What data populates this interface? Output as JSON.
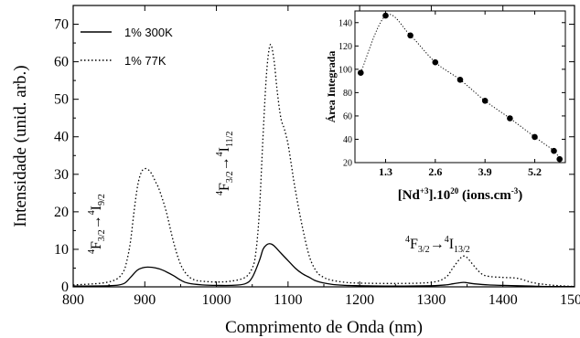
{
  "chart_data": [
    {
      "type": "line",
      "xlabel": "Comprimento de Onda (nm)",
      "ylabel": "Intensidade (unid. arb.)",
      "xlim": [
        800,
        1500
      ],
      "ylim": [
        0,
        75
      ],
      "xticks": [
        800,
        900,
        1000,
        1100,
        1200,
        1300,
        1400,
        1500
      ],
      "yticks": [
        0,
        10,
        20,
        30,
        40,
        50,
        60,
        70
      ],
      "legend": "top-left",
      "series": [
        {
          "name": "1% 300K",
          "style": "solid",
          "x": [
            800,
            850,
            870,
            880,
            890,
            900,
            910,
            920,
            930,
            940,
            950,
            960,
            980,
            1000,
            1020,
            1040,
            1050,
            1060,
            1065,
            1070,
            1075,
            1080,
            1090,
            1100,
            1110,
            1120,
            1130,
            1140,
            1160,
            1180,
            1200,
            1250,
            1300,
            1320,
            1330,
            1340,
            1345,
            1350,
            1360,
            1380,
            1400,
            1420,
            1440,
            1460,
            1500
          ],
          "y": [
            0.2,
            0.3,
            0.8,
            2.5,
            4.5,
            5.2,
            5.2,
            4.8,
            4.0,
            3.0,
            1.8,
            1.0,
            0.5,
            0.4,
            0.4,
            0.8,
            2.5,
            7.0,
            10.0,
            11.2,
            11.5,
            11.0,
            9.0,
            7.0,
            5.0,
            3.5,
            2.5,
            1.5,
            0.7,
            0.4,
            0.3,
            0.2,
            0.3,
            0.5,
            0.8,
            1.1,
            1.2,
            1.1,
            0.8,
            0.5,
            0.4,
            0.3,
            0.2,
            0.1,
            0.1
          ]
        },
        {
          "name": "1% 77K",
          "style": "dotted",
          "x": [
            800,
            840,
            860,
            870,
            875,
            880,
            885,
            890,
            895,
            900,
            905,
            910,
            915,
            920,
            930,
            940,
            950,
            960,
            970,
            980,
            1000,
            1020,
            1040,
            1050,
            1055,
            1060,
            1065,
            1070,
            1075,
            1080,
            1085,
            1090,
            1095,
            1100,
            1105,
            1110,
            1120,
            1130,
            1140,
            1150,
            1160,
            1180,
            1200,
            1250,
            1300,
            1320,
            1330,
            1340,
            1345,
            1350,
            1360,
            1370,
            1380,
            1400,
            1420,
            1440,
            1460,
            1480,
            1500
          ],
          "y": [
            0.5,
            1.0,
            2.0,
            4.0,
            7.0,
            12.0,
            20.0,
            27.0,
            30.5,
            31.5,
            31.2,
            30.0,
            28.0,
            26.0,
            20.0,
            12.0,
            6.0,
            3.0,
            1.8,
            1.5,
            1.3,
            1.5,
            2.5,
            5.0,
            9.0,
            20.0,
            40.0,
            57.0,
            64.5,
            61.0,
            52.0,
            45.0,
            42.0,
            38.0,
            32.0,
            26.0,
            16.0,
            8.0,
            4.0,
            2.5,
            1.8,
            1.2,
            1.0,
            0.9,
            1.2,
            2.5,
            5.0,
            7.5,
            8.2,
            7.8,
            5.5,
            3.5,
            2.8,
            2.5,
            2.3,
            1.2,
            0.6,
            0.3,
            0.1
          ]
        }
      ],
      "annotations": [
        {
          "base": "4",
          "main": "F",
          "sub": "3/2",
          "arrow": "→",
          "base2": "4",
          "main2": "I",
          "sub2": "9/2"
        },
        {
          "base": "4",
          "main": "F",
          "sub": "3/2",
          "arrow": "→",
          "base2": "4",
          "main2": "I",
          "sub2": "11/2"
        },
        {
          "base": "4",
          "main": "F",
          "sub": "3/2",
          "arrow": "→",
          "base2": "4",
          "main2": "I",
          "sub2": "13/2"
        }
      ]
    },
    {
      "type": "scatter",
      "xlabel_parts": [
        "[Nd",
        "+3",
        "].10",
        "20",
        " (ions.cm",
        "-3",
        ")"
      ],
      "ylabel": "Área Integrada",
      "xlim": [
        0.5,
        6.0
      ],
      "ylim": [
        20,
        150
      ],
      "xticks": [
        "1.3",
        "2.6",
        "3.9",
        "5.2"
      ],
      "xtick_values": [
        1.3,
        2.6,
        3.9,
        5.2
      ],
      "yticks": [
        20,
        40,
        60,
        80,
        100,
        120,
        140
      ],
      "x": [
        0.65,
        1.3,
        1.95,
        2.6,
        3.25,
        3.9,
        4.55,
        5.2,
        5.7,
        5.85
      ],
      "y": [
        97,
        146,
        129,
        106,
        91,
        73,
        58,
        42,
        30,
        23
      ]
    }
  ]
}
